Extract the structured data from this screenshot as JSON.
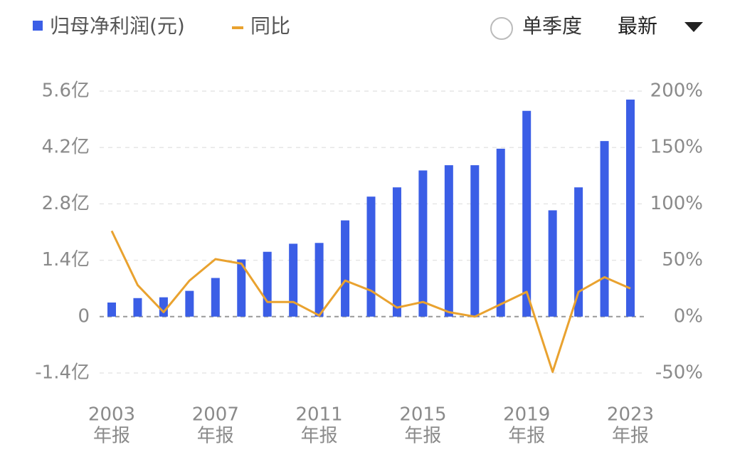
{
  "chart_data": {
    "type": "bar-line",
    "categories": [
      "2003",
      null,
      null,
      null,
      "2007",
      null,
      null,
      null,
      "2011",
      null,
      null,
      null,
      "2015",
      null,
      null,
      null,
      "2019",
      null,
      null,
      null,
      "2023"
    ],
    "category_suffix": "年报",
    "series": [
      {
        "name": "归母净利润(元)",
        "type": "bar",
        "color": "#3b5ee6",
        "values": [
          0.35,
          0.46,
          0.48,
          0.64,
          0.96,
          1.42,
          1.61,
          1.81,
          1.83,
          2.39,
          2.98,
          3.21,
          3.63,
          3.76,
          3.76,
          4.17,
          5.11,
          2.64,
          3.21,
          4.36,
          5.39
        ]
      },
      {
        "name": "同比",
        "type": "line",
        "axis": "y2",
        "color": "#e9a22f",
        "values": [
          76,
          28,
          4,
          32,
          51,
          47,
          13,
          13,
          1,
          32,
          23,
          8,
          13,
          4,
          0,
          11,
          22,
          -49,
          22,
          35,
          25
        ]
      }
    ],
    "ylim": [
      -1.4,
      5.6
    ],
    "yticks": [
      {
        "value": -1.4,
        "label": "-1.4亿"
      },
      0,
      {
        "value": 1.4,
        "label": "1.4亿"
      },
      {
        "value": 2.8,
        "label": "2.8亿"
      },
      {
        "value": 4.2,
        "label": "4.2亿"
      },
      {
        "value": 5.6,
        "label": "5.6亿"
      }
    ],
    "y2lim": [
      -50,
      200
    ],
    "y2ticks": [
      {
        "value": -50,
        "label": "-50%"
      },
      {
        "value": 0,
        "label": "0%"
      },
      {
        "value": 50,
        "label": "50%"
      },
      {
        "value": 100,
        "label": "100%"
      },
      {
        "value": 150,
        "label": "150%"
      },
      {
        "value": 200,
        "label": "200%"
      }
    ],
    "grid": true
  },
  "controls": {
    "toggle": "单季度",
    "dropdown": "最新"
  }
}
